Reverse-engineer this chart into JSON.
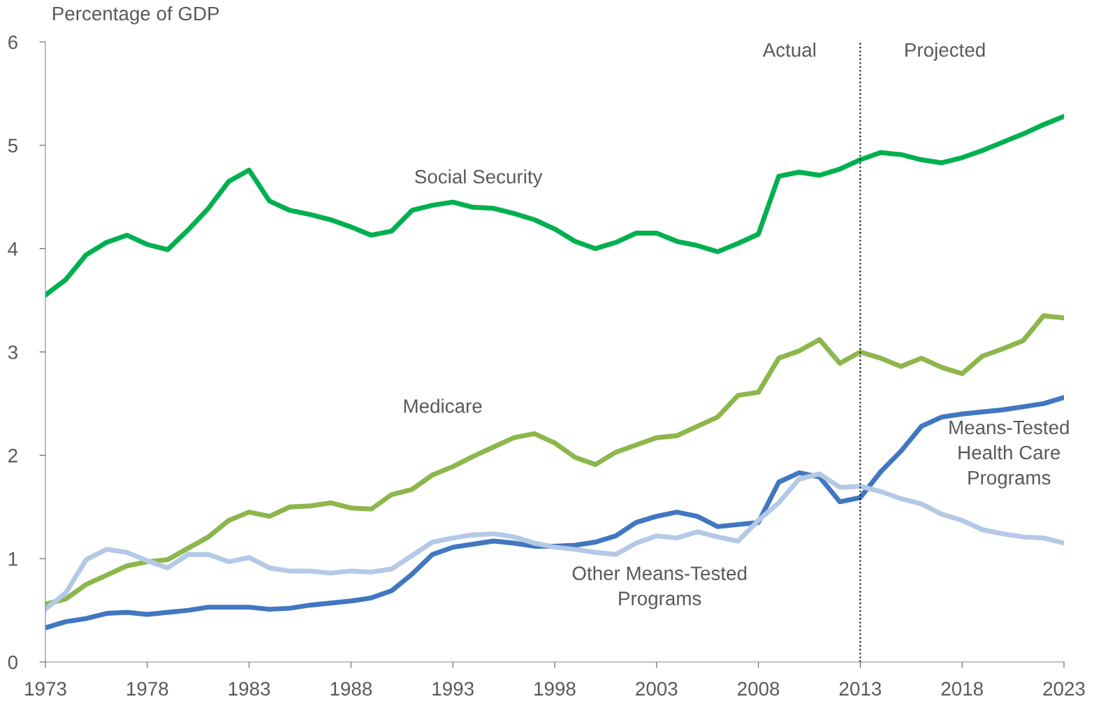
{
  "chart_data": {
    "type": "line",
    "ylabel": "Percentage of GDP",
    "x": [
      1973,
      1974,
      1975,
      1976,
      1977,
      1978,
      1979,
      1980,
      1981,
      1982,
      1983,
      1984,
      1985,
      1986,
      1987,
      1988,
      1989,
      1990,
      1991,
      1992,
      1993,
      1994,
      1995,
      1996,
      1997,
      1998,
      1999,
      2000,
      2001,
      2002,
      2003,
      2004,
      2005,
      2006,
      2007,
      2008,
      2009,
      2010,
      2011,
      2012,
      2013,
      2014,
      2015,
      2016,
      2017,
      2018,
      2019,
      2020,
      2021,
      2022,
      2023
    ],
    "series": [
      {
        "name": "Social Security",
        "color": "#00b050",
        "values": [
          3.55,
          3.7,
          3.94,
          4.06,
          4.13,
          4.04,
          3.99,
          4.18,
          4.39,
          4.65,
          4.76,
          4.46,
          4.37,
          4.33,
          4.28,
          4.21,
          4.13,
          4.17,
          4.37,
          4.42,
          4.45,
          4.4,
          4.39,
          4.34,
          4.28,
          4.19,
          4.07,
          4.0,
          4.06,
          4.15,
          4.15,
          4.07,
          4.03,
          3.97,
          4.05,
          4.14,
          4.7,
          4.74,
          4.71,
          4.77,
          4.86,
          4.93,
          4.91,
          4.86,
          4.83,
          4.88,
          4.95,
          5.03,
          5.11,
          5.2,
          5.28
        ]
      },
      {
        "name": "Medicare",
        "color": "#8db64c",
        "values": [
          0.56,
          0.61,
          0.75,
          0.84,
          0.93,
          0.97,
          0.99,
          1.1,
          1.21,
          1.37,
          1.45,
          1.41,
          1.5,
          1.51,
          1.54,
          1.49,
          1.48,
          1.62,
          1.67,
          1.81,
          1.89,
          1.99,
          2.08,
          2.17,
          2.21,
          2.12,
          1.98,
          1.91,
          2.03,
          2.1,
          2.17,
          2.19,
          2.28,
          2.37,
          2.58,
          2.61,
          2.94,
          3.01,
          3.12,
          2.89,
          3.0,
          2.94,
          2.86,
          2.94,
          2.85,
          2.79,
          2.96,
          3.03,
          3.11,
          3.35,
          3.33
        ]
      },
      {
        "name": "Means-Tested\nHealth Care\nPrograms",
        "color": "#4177c0",
        "values": [
          0.33,
          0.39,
          0.42,
          0.47,
          0.48,
          0.46,
          0.48,
          0.5,
          0.53,
          0.53,
          0.53,
          0.51,
          0.52,
          0.55,
          0.57,
          0.59,
          0.62,
          0.69,
          0.85,
          1.04,
          1.11,
          1.14,
          1.17,
          1.15,
          1.12,
          1.12,
          1.13,
          1.16,
          1.22,
          1.35,
          1.41,
          1.45,
          1.41,
          1.31,
          1.33,
          1.35,
          1.74,
          1.83,
          1.79,
          1.55,
          1.59,
          1.84,
          2.04,
          2.28,
          2.37,
          2.4,
          2.42,
          2.44,
          2.47,
          2.5,
          2.56
        ]
      },
      {
        "name": "Other Means-Tested\nPrograms",
        "color": "#b4c9e6",
        "values": [
          0.51,
          0.67,
          0.99,
          1.09,
          1.06,
          0.98,
          0.91,
          1.04,
          1.04,
          0.97,
          1.01,
          0.91,
          0.88,
          0.88,
          0.86,
          0.88,
          0.87,
          0.9,
          1.03,
          1.16,
          1.2,
          1.23,
          1.24,
          1.21,
          1.15,
          1.11,
          1.09,
          1.06,
          1.04,
          1.15,
          1.22,
          1.2,
          1.26,
          1.21,
          1.17,
          1.37,
          1.54,
          1.77,
          1.82,
          1.69,
          1.7,
          1.65,
          1.58,
          1.53,
          1.43,
          1.37,
          1.28,
          1.24,
          1.21,
          1.2,
          1.15
        ]
      }
    ],
    "xlim": [
      1973,
      2023
    ],
    "xticks": [
      1973,
      1978,
      1983,
      1988,
      1993,
      1998,
      2003,
      2008,
      2013,
      2018,
      2023
    ],
    "ylim": [
      0,
      6
    ],
    "yticks": [
      0,
      1,
      2,
      3,
      4,
      5,
      6
    ],
    "ref_lines": [
      {
        "axis": "x",
        "value": 2013,
        "color": "#000000",
        "line_style": "dotted"
      }
    ],
    "annotations": [
      "Actual",
      "Projected"
    ],
    "grid": false,
    "legend": false,
    "marker": "none",
    "line_style": "solid"
  }
}
